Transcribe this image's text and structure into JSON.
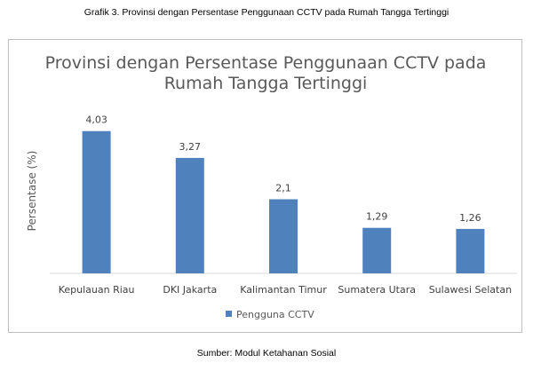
{
  "caption_top": "Grafik 3. Provinsi dengan Persentase Penggunaan CCTV pada Rumah Tangga Tertinggi",
  "caption_bottom": "Sumber: Modul Ketahanan Sosial",
  "chart_data": {
    "type": "bar",
    "title_lines": [
      "Provinsi dengan Persentase Penggunaan CCTV pada",
      "Rumah Tangga Tertinggi"
    ],
    "ylabel": "Persentase (%)",
    "xlabel": "",
    "categories": [
      "Kepulauan Riau",
      "DKI Jakarta",
      "Kalimantan Timur",
      "Sumatera Utara",
      "Sulawesi Selatan"
    ],
    "series": [
      {
        "name": "Pengguna CCTV",
        "color": "#4f81bd",
        "values": [
          4.03,
          3.27,
          2.1,
          1.29,
          1.26
        ],
        "labels": [
          "4,03",
          "3,27",
          "2,1",
          "1,29",
          "1,26"
        ]
      }
    ],
    "ylim": [
      0,
      4.6
    ],
    "grid": false,
    "legend_position": "bottom-left"
  }
}
